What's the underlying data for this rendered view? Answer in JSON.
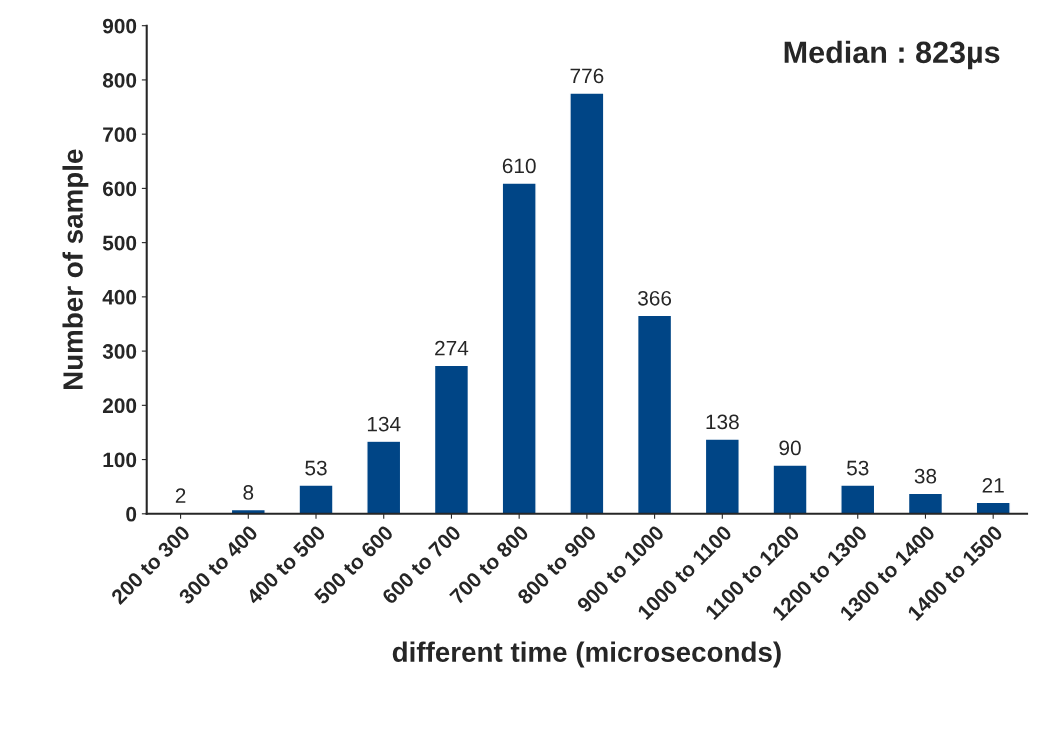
{
  "chart_data": {
    "type": "bar",
    "xlabel": "different time (microseconds)",
    "ylabel": "Number of sample",
    "categories": [
      "200 to 300",
      "300 to 400",
      "400 to 500",
      "500 to 600",
      "600 to 700",
      "700 to 800",
      "800 to 900",
      "900 to 1000",
      "1000 to 1100",
      "1100 to 1200",
      "1200 to 1300",
      "1300 to 1400",
      "1400 to 1500"
    ],
    "values": [
      2,
      8,
      53,
      134,
      274,
      610,
      776,
      366,
      138,
      90,
      53,
      38,
      21
    ],
    "color": "#004586",
    "ylim": [
      0,
      900
    ],
    "yticks": [
      0,
      100,
      200,
      300,
      400,
      500,
      600,
      700,
      800,
      900
    ],
    "data_labels": true,
    "grid": false,
    "legend": false,
    "annotations": [
      "Median : 823µs"
    ]
  }
}
